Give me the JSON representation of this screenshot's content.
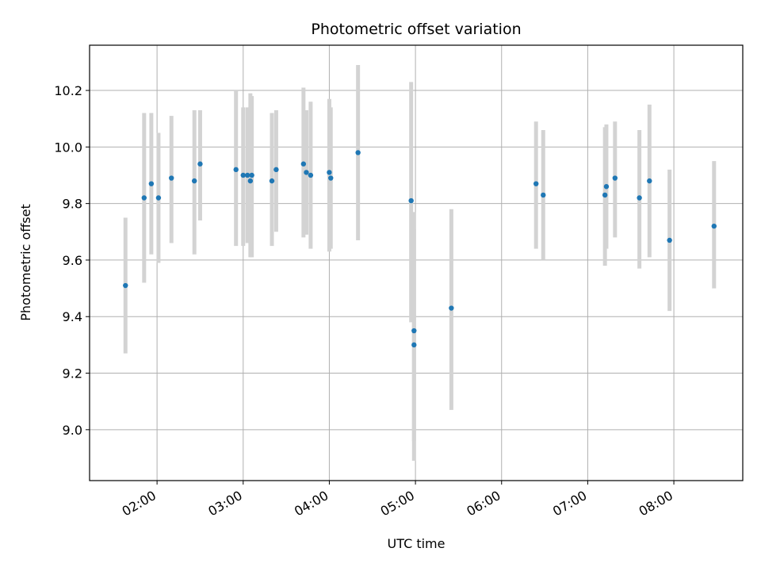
{
  "chart_data": {
    "type": "scatter",
    "title": "Photometric offset variation",
    "xlabel": "UTC time",
    "ylabel": "Photometric offset",
    "x_ticks": [
      "02:00",
      "03:00",
      "04:00",
      "05:00",
      "06:00",
      "07:00",
      "08:00"
    ],
    "x_tick_hours": [
      2,
      3,
      4,
      5,
      6,
      7,
      8
    ],
    "y_ticks": [
      "9.0",
      "9.2",
      "9.4",
      "9.6",
      "9.8",
      "10.0",
      "10.2"
    ],
    "y_tick_values": [
      9.0,
      9.2,
      9.4,
      9.6,
      9.8,
      10.0,
      10.2
    ],
    "xlim": [
      "01:13",
      "08:48"
    ],
    "ylim": [
      8.82,
      10.36
    ],
    "grid": true,
    "point_color": "#1f77b4",
    "errorbar_color": "#d3d3d3",
    "series": [
      {
        "points": [
          {
            "t": "01:38",
            "y": 9.51,
            "lo": 9.27,
            "hi": 9.75
          },
          {
            "t": "01:51",
            "y": 9.82,
            "lo": 9.52,
            "hi": 10.12
          },
          {
            "t": "01:56",
            "y": 9.87,
            "lo": 9.62,
            "hi": 10.12
          },
          {
            "t": "02:01",
            "y": 9.82,
            "lo": 9.59,
            "hi": 10.05
          },
          {
            "t": "02:10",
            "y": 9.89,
            "lo": 9.66,
            "hi": 10.11
          },
          {
            "t": "02:26",
            "y": 9.88,
            "lo": 9.62,
            "hi": 10.13
          },
          {
            "t": "02:30",
            "y": 9.94,
            "lo": 9.74,
            "hi": 10.13
          },
          {
            "t": "02:55",
            "y": 9.92,
            "lo": 9.65,
            "hi": 10.2
          },
          {
            "t": "03:00",
            "y": 9.9,
            "lo": 9.65,
            "hi": 10.14
          },
          {
            "t": "03:03",
            "y": 9.9,
            "lo": 9.66,
            "hi": 10.14
          },
          {
            "t": "03:05",
            "y": 9.88,
            "lo": 9.61,
            "hi": 10.19
          },
          {
            "t": "03:06",
            "y": 9.9,
            "lo": 9.61,
            "hi": 10.18
          },
          {
            "t": "03:20",
            "y": 9.88,
            "lo": 9.65,
            "hi": 10.12
          },
          {
            "t": "03:23",
            "y": 9.92,
            "lo": 9.7,
            "hi": 10.13
          },
          {
            "t": "03:42",
            "y": 9.94,
            "lo": 9.68,
            "hi": 10.21
          },
          {
            "t": "03:44",
            "y": 9.91,
            "lo": 9.69,
            "hi": 10.13
          },
          {
            "t": "03:47",
            "y": 9.9,
            "lo": 9.64,
            "hi": 10.16
          },
          {
            "t": "04:00",
            "y": 9.91,
            "lo": 9.63,
            "hi": 10.17
          },
          {
            "t": "04:01",
            "y": 9.89,
            "lo": 9.64,
            "hi": 10.14
          },
          {
            "t": "04:20",
            "y": 9.98,
            "lo": 9.67,
            "hi": 10.29
          },
          {
            "t": "04:57",
            "y": 9.81,
            "lo": 9.38,
            "hi": 10.23
          },
          {
            "t": "04:59",
            "y": 9.35,
            "lo": 8.96,
            "hi": 9.77
          },
          {
            "t": "04:59",
            "y": 9.3,
            "lo": 8.89,
            "hi": 9.71
          },
          {
            "t": "05:25",
            "y": 9.43,
            "lo": 9.07,
            "hi": 9.78
          },
          {
            "t": "06:24",
            "y": 9.87,
            "lo": 9.64,
            "hi": 10.09
          },
          {
            "t": "06:29",
            "y": 9.83,
            "lo": 9.6,
            "hi": 10.06
          },
          {
            "t": "07:12",
            "y": 9.83,
            "lo": 9.58,
            "hi": 10.07
          },
          {
            "t": "07:13",
            "y": 9.86,
            "lo": 9.64,
            "hi": 10.08
          },
          {
            "t": "07:19",
            "y": 9.89,
            "lo": 9.68,
            "hi": 10.09
          },
          {
            "t": "07:36",
            "y": 9.82,
            "lo": 9.57,
            "hi": 10.06
          },
          {
            "t": "07:43",
            "y": 9.88,
            "lo": 9.61,
            "hi": 10.15
          },
          {
            "t": "07:57",
            "y": 9.67,
            "lo": 9.42,
            "hi": 9.92
          },
          {
            "t": "08:28",
            "y": 9.72,
            "lo": 9.5,
            "hi": 9.95
          }
        ]
      }
    ]
  }
}
